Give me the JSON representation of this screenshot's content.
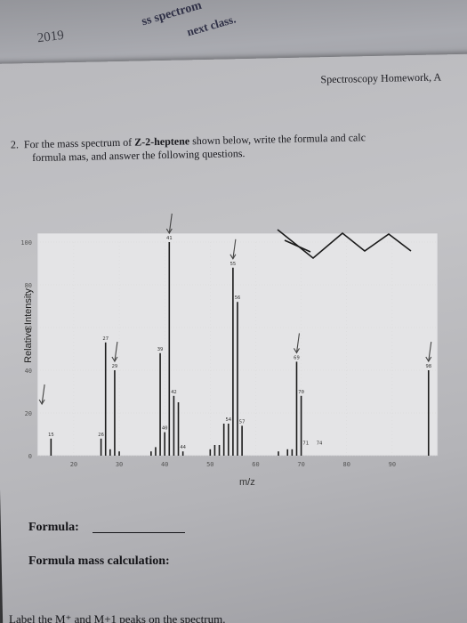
{
  "background_sheet": {
    "year": "2019",
    "text1": "ss spectrom",
    "text2": "next class."
  },
  "header": {
    "right_text": "Spectroscopy Homework, A"
  },
  "question": {
    "number": "2.",
    "line1_prefix": "For the mass spectrum of ",
    "compound": "Z-2-heptene",
    "line1_suffix": " shown below, write the formula and calc",
    "line2": "formula mas, and answer the following questions."
  },
  "chart_data": {
    "type": "bar",
    "xlabel": "m/z",
    "ylabel": "Relative Intensity",
    "xlim": [
      12,
      100
    ],
    "ylim": [
      0,
      100
    ],
    "x_ticks": [
      "20",
      "30",
      "40",
      "50",
      "60",
      "70",
      "80",
      "90"
    ],
    "y_ticks": [
      "0",
      "20",
      "40",
      "60",
      "80",
      "100"
    ],
    "peaks": [
      {
        "mz": 15,
        "value": 8
      },
      {
        "mz": 26,
        "value": 8
      },
      {
        "mz": 27,
        "value": 53
      },
      {
        "mz": 28,
        "value": 3
      },
      {
        "mz": 29,
        "value": 40
      },
      {
        "mz": 30,
        "value": 2
      },
      {
        "mz": 37,
        "value": 2
      },
      {
        "mz": 38,
        "value": 4
      },
      {
        "mz": 39,
        "value": 48
      },
      {
        "mz": 40,
        "value": 11
      },
      {
        "mz": 41,
        "value": 100
      },
      {
        "mz": 42,
        "value": 28
      },
      {
        "mz": 43,
        "value": 25
      },
      {
        "mz": 44,
        "value": 2
      },
      {
        "mz": 50,
        "value": 3
      },
      {
        "mz": 51,
        "value": 5
      },
      {
        "mz": 52,
        "value": 5
      },
      {
        "mz": 53,
        "value": 15
      },
      {
        "mz": 54,
        "value": 15
      },
      {
        "mz": 55,
        "value": 88
      },
      {
        "mz": 56,
        "value": 72
      },
      {
        "mz": 57,
        "value": 14
      },
      {
        "mz": 65,
        "value": 2
      },
      {
        "mz": 67,
        "value": 3
      },
      {
        "mz": 68,
        "value": 3
      },
      {
        "mz": 69,
        "value": 44
      },
      {
        "mz": 70,
        "value": 28
      },
      {
        "mz": 98,
        "value": 40
      }
    ],
    "peak_labels": [
      {
        "mz": 15,
        "label": "15"
      },
      {
        "mz": 26,
        "label": "26"
      },
      {
        "mz": 27,
        "label": "27"
      },
      {
        "mz": 29,
        "label": "29"
      },
      {
        "mz": 39,
        "label": "39"
      },
      {
        "mz": 40,
        "label": "40"
      },
      {
        "mz": 41,
        "label": "41"
      },
      {
        "mz": 42,
        "label": "42"
      },
      {
        "mz": 44,
        "label": "44"
      },
      {
        "mz": 54,
        "label": "54"
      },
      {
        "mz": 55,
        "label": "55"
      },
      {
        "mz": 56,
        "label": "56"
      },
      {
        "mz": 57,
        "label": "57"
      },
      {
        "mz": 69,
        "label": "69"
      },
      {
        "mz": 70,
        "label": "70"
      },
      {
        "mz": 71,
        "label": "71"
      },
      {
        "mz": 74,
        "label": "74"
      },
      {
        "mz": 98,
        "label": "98"
      }
    ],
    "annotation_arrows_mz": [
      13,
      29,
      41,
      55,
      69,
      98
    ]
  },
  "answers": {
    "formula_label": "Formula:",
    "calc_label": "Formula mass calculation:",
    "bottom_text": "Label the M⁺ and M+1 peaks on the spectrum."
  }
}
